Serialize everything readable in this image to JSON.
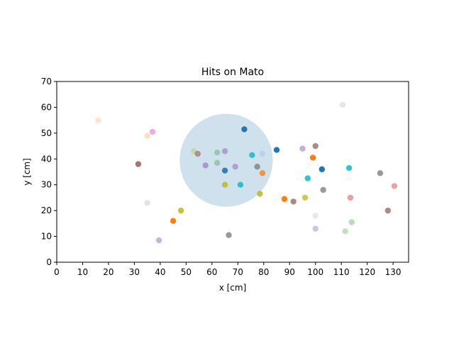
{
  "chart_data": {
    "type": "scatter",
    "title": "Hits on Mato",
    "xlabel": "x [cm]",
    "ylabel": "y [cm]",
    "xlim": [
      0,
      136
    ],
    "ylim": [
      0,
      70
    ],
    "xticks": [
      0,
      10,
      20,
      30,
      40,
      50,
      60,
      70,
      80,
      90,
      100,
      110,
      120,
      130
    ],
    "yticks": [
      0,
      10,
      20,
      30,
      40,
      50,
      60,
      70
    ],
    "grid": false,
    "legend": "none",
    "target": {
      "center": [
        65.5,
        39.5
      ],
      "radius": 18,
      "color": "#a9c8e0",
      "opacity": 0.55
    },
    "points": [
      {
        "x": 16,
        "y": 55,
        "color": "#ff7f0e",
        "alpha": 0.2
      },
      {
        "x": 35,
        "y": 49,
        "color": "#ff7f0e",
        "alpha": 0.25
      },
      {
        "x": 37,
        "y": 50.5,
        "color": "#e377c2",
        "alpha": 0.6
      },
      {
        "x": 31.5,
        "y": 38,
        "color": "#8c564b",
        "alpha": 0.8
      },
      {
        "x": 35,
        "y": 23,
        "color": "#c7c7c7",
        "alpha": 0.5
      },
      {
        "x": 39.5,
        "y": 8.5,
        "color": "#9467bd",
        "alpha": 0.5
      },
      {
        "x": 45,
        "y": 16,
        "color": "#ff7f0e",
        "alpha": 1.0
      },
      {
        "x": 48,
        "y": 20,
        "color": "#bcbd22",
        "alpha": 0.9
      },
      {
        "x": 53,
        "y": 43,
        "color": "#bcbd22",
        "alpha": 0.35
      },
      {
        "x": 54.5,
        "y": 42,
        "color": "#8c564b",
        "alpha": 0.55
      },
      {
        "x": 57.5,
        "y": 37.5,
        "color": "#9467bd",
        "alpha": 0.6
      },
      {
        "x": 62,
        "y": 42.5,
        "color": "#2ca02c",
        "alpha": 0.35
      },
      {
        "x": 62,
        "y": 38.5,
        "color": "#2ca02c",
        "alpha": 0.35
      },
      {
        "x": 65,
        "y": 43,
        "color": "#9467bd",
        "alpha": 0.55
      },
      {
        "x": 65,
        "y": 35.5,
        "color": "#1f77b4",
        "alpha": 0.9
      },
      {
        "x": 65,
        "y": 30,
        "color": "#bcbd22",
        "alpha": 0.9
      },
      {
        "x": 66.5,
        "y": 10.5,
        "color": "#7f7f7f",
        "alpha": 0.8
      },
      {
        "x": 69,
        "y": 37,
        "color": "#9467bd",
        "alpha": 0.55
      },
      {
        "x": 71,
        "y": 30,
        "color": "#17becf",
        "alpha": 0.9
      },
      {
        "x": 72.5,
        "y": 51.5,
        "color": "#1f77b4",
        "alpha": 1.0
      },
      {
        "x": 75.5,
        "y": 41.5,
        "color": "#17becf",
        "alpha": 0.9
      },
      {
        "x": 77.5,
        "y": 37,
        "color": "#7f7f7f",
        "alpha": 0.8
      },
      {
        "x": 78.5,
        "y": 26.5,
        "color": "#bcbd22",
        "alpha": 0.9
      },
      {
        "x": 79.5,
        "y": 42,
        "color": "#aec7e8",
        "alpha": 0.6
      },
      {
        "x": 79.5,
        "y": 34.5,
        "color": "#ff7f0e",
        "alpha": 0.8
      },
      {
        "x": 85,
        "y": 43.5,
        "color": "#1f77b4",
        "alpha": 1.0
      },
      {
        "x": 88,
        "y": 24.5,
        "color": "#ff7f0e",
        "alpha": 1.0
      },
      {
        "x": 91.5,
        "y": 23.5,
        "color": "#8c564b",
        "alpha": 0.7
      },
      {
        "x": 95,
        "y": 44,
        "color": "#9467bd",
        "alpha": 0.55
      },
      {
        "x": 96,
        "y": 25,
        "color": "#bcbd22",
        "alpha": 0.8
      },
      {
        "x": 97,
        "y": 32.5,
        "color": "#17becf",
        "alpha": 0.9
      },
      {
        "x": 99,
        "y": 40.5,
        "color": "#ff7f0e",
        "alpha": 1.0
      },
      {
        "x": 100,
        "y": 45,
        "color": "#8c564b",
        "alpha": 0.7
      },
      {
        "x": 100,
        "y": 18,
        "color": "#c7c7c7",
        "alpha": 0.4
      },
      {
        "x": 100,
        "y": 13,
        "color": "#9467bd",
        "alpha": 0.4
      },
      {
        "x": 102.5,
        "y": 36,
        "color": "#1f77b4",
        "alpha": 1.0
      },
      {
        "x": 103,
        "y": 28,
        "color": "#7f7f7f",
        "alpha": 0.8
      },
      {
        "x": 110.5,
        "y": 61,
        "color": "#aec7e8",
        "alpha": 0.4
      },
      {
        "x": 111.5,
        "y": 12,
        "color": "#2ca02c",
        "alpha": 0.3
      },
      {
        "x": 113,
        "y": 36.5,
        "color": "#17becf",
        "alpha": 0.9
      },
      {
        "x": 113.5,
        "y": 25,
        "color": "#d62728",
        "alpha": 0.45
      },
      {
        "x": 114,
        "y": 15.5,
        "color": "#2ca02c",
        "alpha": 0.35
      },
      {
        "x": 125,
        "y": 34.5,
        "color": "#7f7f7f",
        "alpha": 0.8
      },
      {
        "x": 128,
        "y": 20,
        "color": "#8c564b",
        "alpha": 0.7
      },
      {
        "x": 130.5,
        "y": 29.5,
        "color": "#d62728",
        "alpha": 0.45
      }
    ]
  }
}
